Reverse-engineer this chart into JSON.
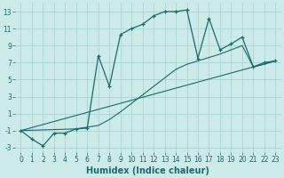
{
  "xlabel": "Humidex (Indice chaleur)",
  "bg_color": "#cceae8",
  "grid_color": "#aad4d0",
  "line_color": "#1a6b6b",
  "line1_x": [
    0,
    1,
    2,
    3,
    4,
    5,
    6,
    7,
    8,
    9,
    10,
    11,
    12,
    13,
    14,
    15,
    16,
    17,
    18,
    19,
    20,
    21,
    22,
    23
  ],
  "line1_y": [
    -1,
    -2.0,
    -2.8,
    -1.3,
    -1.3,
    -0.8,
    -0.7,
    7.8,
    4.2,
    10.3,
    11.0,
    11.5,
    12.5,
    13.0,
    13.0,
    13.2,
    7.5,
    12.2,
    8.5,
    9.2,
    10.0,
    6.5,
    7.0,
    7.2
  ],
  "line2_x": [
    0,
    23
  ],
  "line2_y": [
    -1.0,
    7.2
  ],
  "line3_x": [
    0,
    5,
    6,
    7,
    8,
    9,
    10,
    11,
    12,
    13,
    14,
    15,
    16,
    17,
    18,
    19,
    20,
    21,
    22,
    23
  ],
  "line3_y": [
    -1.0,
    -0.8,
    -0.6,
    -0.4,
    0.3,
    1.2,
    2.2,
    3.2,
    4.2,
    5.2,
    6.2,
    6.8,
    7.2,
    7.6,
    8.0,
    8.5,
    9.0,
    6.5,
    6.8,
    7.2
  ],
  "xlim": [
    -0.5,
    23.5
  ],
  "ylim": [
    -3.5,
    14.0
  ],
  "xticks": [
    0,
    1,
    2,
    3,
    4,
    5,
    6,
    7,
    8,
    9,
    10,
    11,
    12,
    13,
    14,
    15,
    16,
    17,
    18,
    19,
    20,
    21,
    22,
    23
  ],
  "yticks": [
    -3,
    -1,
    1,
    3,
    5,
    7,
    9,
    11,
    13
  ],
  "xlabel_fontsize": 7,
  "tick_fontsize": 5.5
}
